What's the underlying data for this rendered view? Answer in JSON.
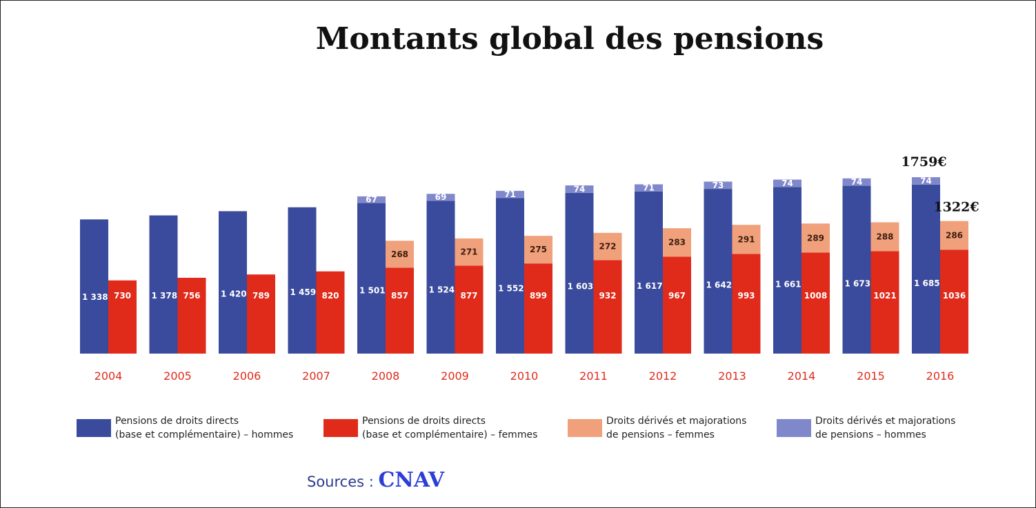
{
  "title": "Montants global des pensions",
  "annotations": [
    {
      "text": "1759€",
      "year": "2016",
      "series": "men"
    },
    {
      "text": "1322€",
      "year": "2016",
      "series": "women"
    }
  ],
  "source": {
    "label": "Sources :",
    "org": "CNAV"
  },
  "colors": {
    "men_direct": "#3a4a9c",
    "men_derived": "#8088cc",
    "women_direct": "#e02a1a",
    "women_derived": "#f0a07a",
    "year_label": "#e02a1a"
  },
  "legend": [
    {
      "lines": [
        "Pensions de droits directs",
        "(base et complémentaire) – hommes"
      ],
      "color_key": "men_direct"
    },
    {
      "lines": [
        "Pensions de droits directs",
        "(base et complémentaire) – femmes"
      ],
      "color_key": "women_direct"
    },
    {
      "lines": [
        "Droits dérivés et majorations",
        "de pensions – femmes"
      ],
      "color_key": "women_derived"
    },
    {
      "lines": [
        "Droits dérivés et majorations",
        "de pensions – hommes"
      ],
      "color_key": "men_derived"
    }
  ],
  "chart_data": {
    "type": "bar",
    "title": "Montants global des pensions",
    "stacked": true,
    "categories": [
      "2004",
      "2005",
      "2006",
      "2007",
      "2008",
      "2009",
      "2010",
      "2011",
      "2012",
      "2013",
      "2014",
      "2015",
      "2016"
    ],
    "series": [
      {
        "name": "Pensions de droits directs (base et complémentaire) – hommes",
        "stack": "hommes",
        "values": [
          1338,
          1378,
          1420,
          1459,
          1501,
          1524,
          1552,
          1603,
          1617,
          1642,
          1661,
          1673,
          1685
        ],
        "labels": [
          "1 338",
          "1 378",
          "1 420",
          "1 459",
          "1 501",
          "1 524",
          "1 552",
          "1 603",
          "1 617",
          "1 642",
          "1 661",
          "1 673",
          "1 685"
        ]
      },
      {
        "name": "Droits dérivés et majorations de pensions – hommes",
        "stack": "hommes",
        "values": [
          null,
          null,
          null,
          null,
          67,
          69,
          71,
          74,
          71,
          73,
          74,
          74,
          74
        ],
        "labels": [
          "",
          "",
          "",
          "",
          "67",
          "69",
          "71",
          "74",
          "71",
          "73",
          "74",
          "74",
          "74"
        ]
      },
      {
        "name": "Pensions de droits directs (base et complémentaire) – femmes",
        "stack": "femmes",
        "values": [
          730,
          756,
          789,
          820,
          857,
          877,
          899,
          932,
          967,
          993,
          1008,
          1021,
          1036
        ],
        "labels": [
          "730",
          "756",
          "789",
          "820",
          "857",
          "877",
          "899",
          "932",
          "967",
          "993",
          "1008",
          "1021",
          "1036"
        ]
      },
      {
        "name": "Droits dérivés et majorations de pensions – femmes",
        "stack": "femmes",
        "values": [
          null,
          null,
          null,
          null,
          268,
          271,
          275,
          272,
          283,
          291,
          289,
          288,
          286
        ],
        "labels": [
          "",
          "",
          "",
          "",
          "268",
          "271",
          "275",
          "272",
          "283",
          "291",
          "289",
          "288",
          "286"
        ]
      }
    ],
    "legend_position": "bottom",
    "grid": false
  }
}
